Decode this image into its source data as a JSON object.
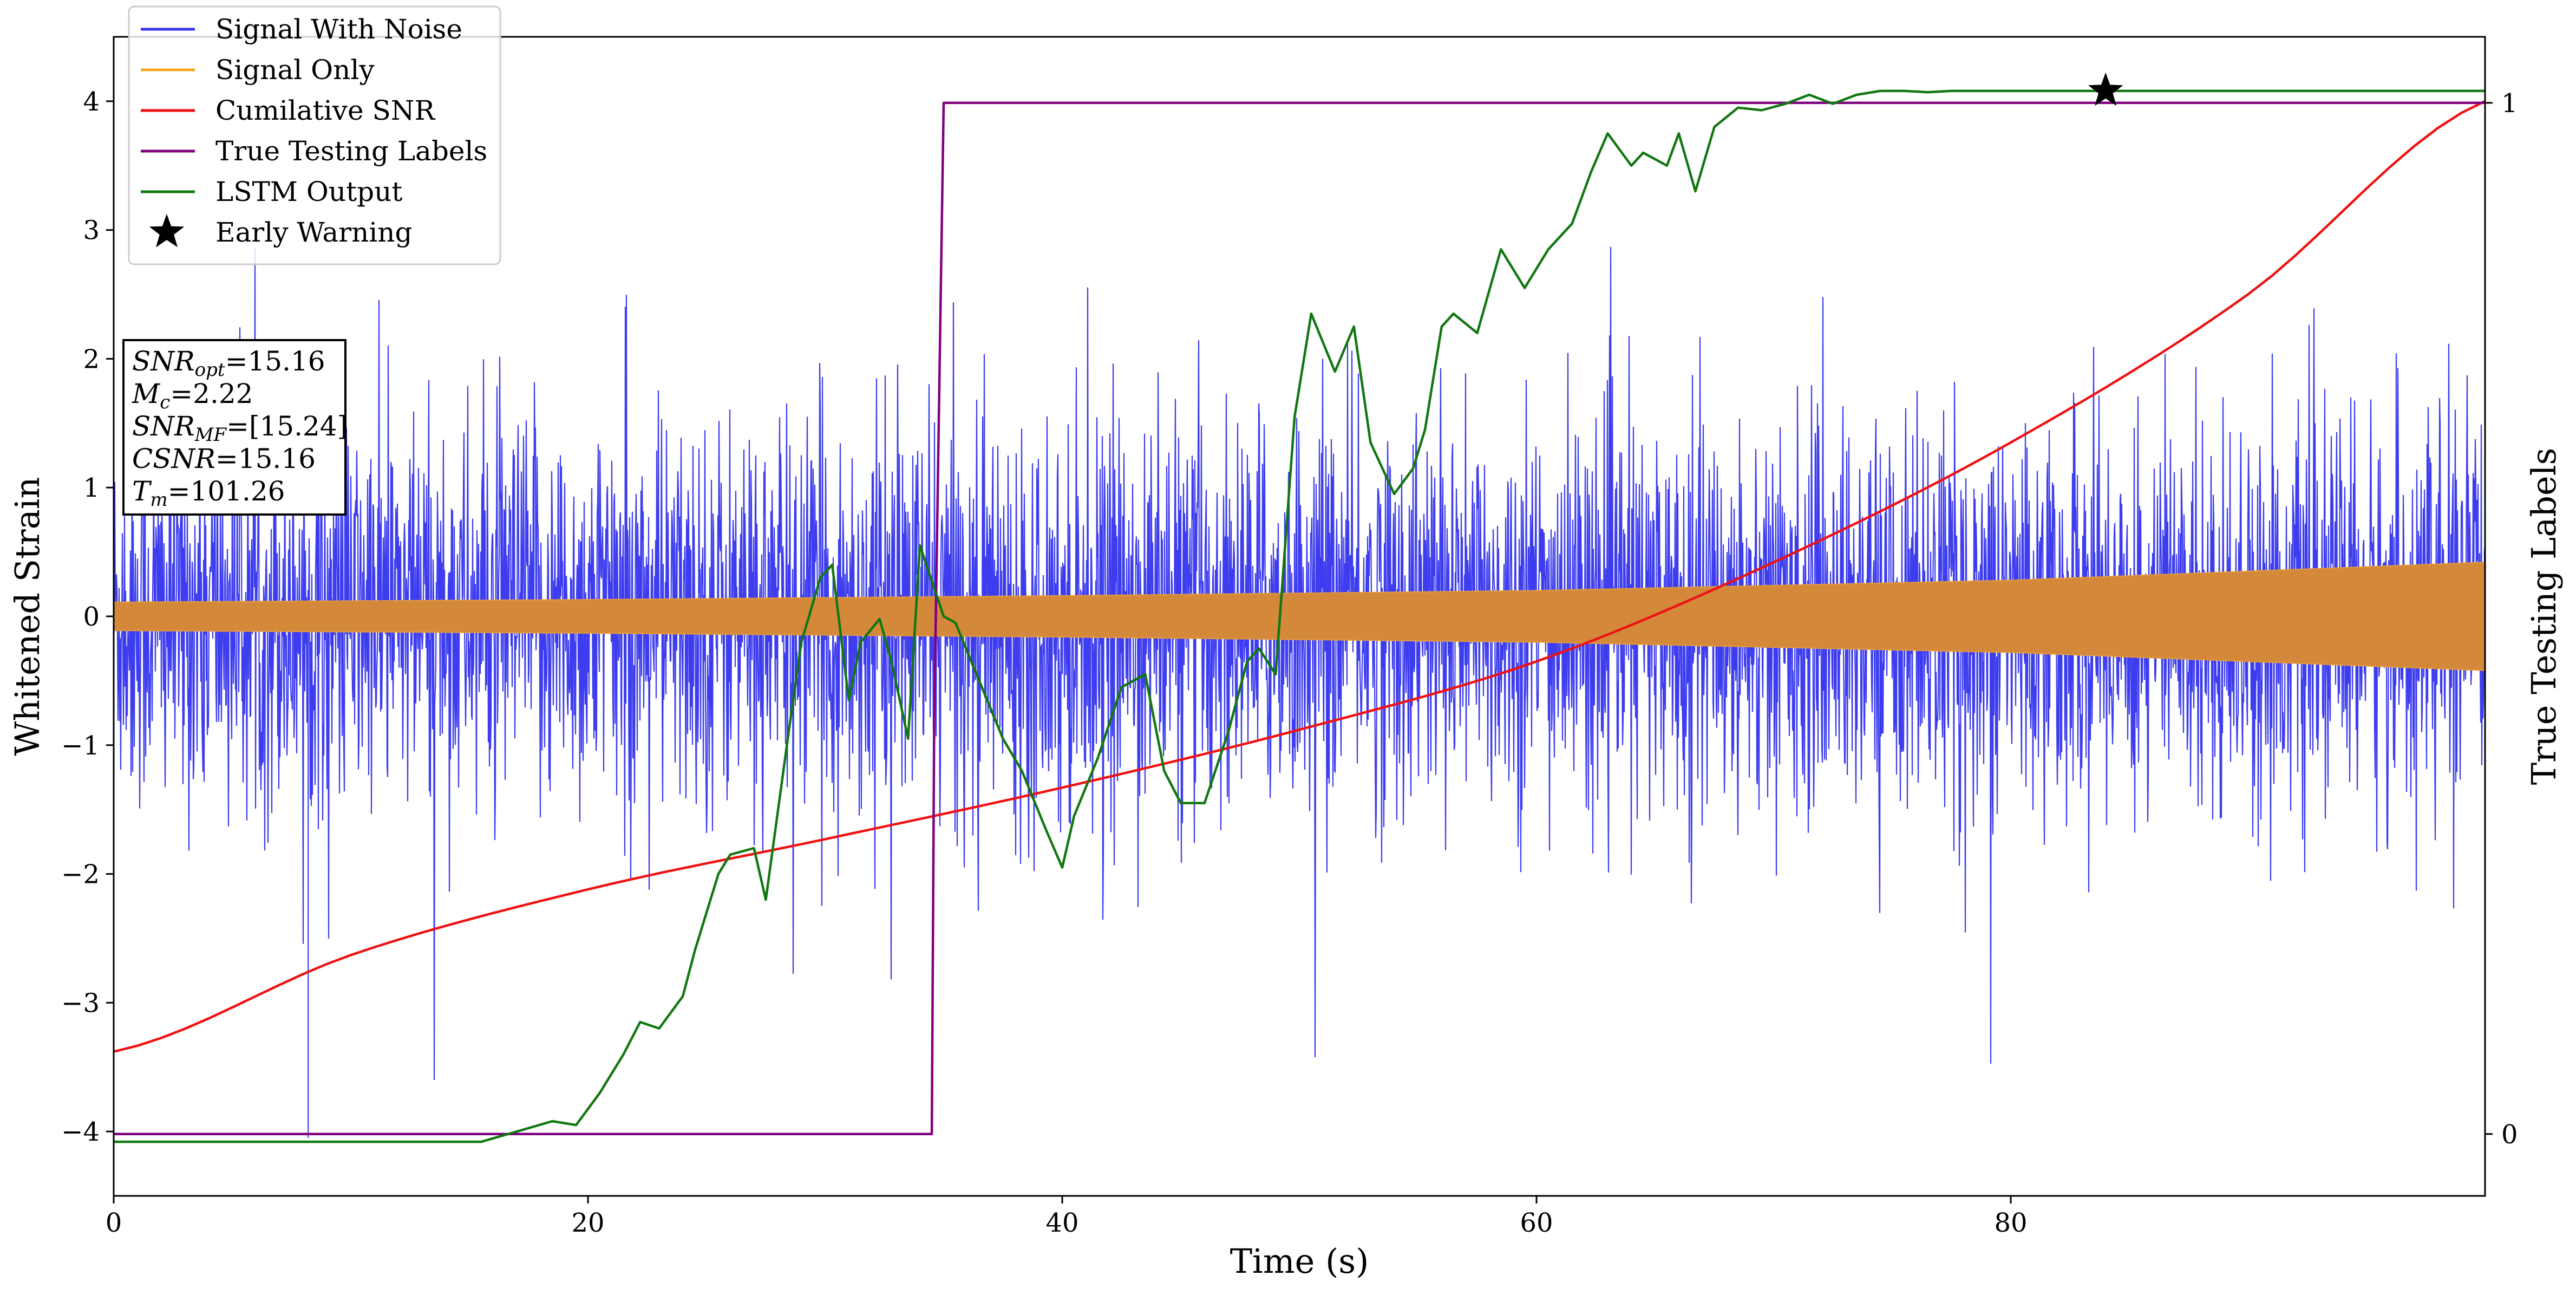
{
  "chart_data": {
    "type": "line",
    "title": "",
    "xlabel": "Time (s)",
    "ylabel": "Whitened Strain",
    "ylabel_right": "True Testing Labels",
    "xlim": [
      0,
      100
    ],
    "ylim": [
      -4.5,
      4.5
    ],
    "ylim_right": [
      -0.06,
      1.064
    ],
    "x_ticks": [
      0,
      20,
      40,
      60,
      80
    ],
    "y_ticks": [
      -4,
      -3,
      -2,
      -1,
      0,
      1,
      2,
      3,
      4
    ],
    "y_tick_labels": [
      "−4",
      "−3",
      "−2",
      "−1",
      "0",
      "1",
      "2",
      "3",
      "4"
    ],
    "y_ticks_right": [
      0,
      1
    ],
    "legend": {
      "placement": "top-left",
      "entries": [
        {
          "label": "Signal With Noise",
          "color": "#3333ee",
          "marker": "line"
        },
        {
          "label": "Signal Only",
          "color": "#f5a623",
          "marker": "line"
        },
        {
          "label": "Cumilative SNR",
          "color": "#ee1111",
          "marker": "line"
        },
        {
          "label": "True Testing Labels",
          "color": "#800080",
          "marker": "line"
        },
        {
          "label": "LSTM Output",
          "color": "#117711",
          "marker": "line"
        },
        {
          "label": "Early Warning",
          "color": "#000000",
          "marker": "star"
        }
      ]
    },
    "info_box": [
      {
        "name": "SNR",
        "sub": "opt",
        "value": "=15.16"
      },
      {
        "name": "M",
        "sub": "c",
        "value": "=2.22"
      },
      {
        "name": "SNR",
        "sub": "MF",
        "value": "=[15.24]"
      },
      {
        "name": "CSNR",
        "sub": "",
        "value": "=15.16"
      },
      {
        "name": "T",
        "sub": "m",
        "value": "=101.26"
      }
    ],
    "series": [
      {
        "name": "Signal With Noise",
        "color": "#3333ee",
        "axis": "left",
        "kind": "noise-band",
        "approx_std": 0.75,
        "approx_range": [
          -3.6,
          3.5
        ],
        "approx_extreme_spike": -4.05
      },
      {
        "name": "Signal Only",
        "color": "#d4883a",
        "axis": "left",
        "kind": "envelope",
        "amplitude_x": [
          0,
          20,
          40,
          60,
          80,
          100
        ],
        "amplitude": [
          0.11,
          0.13,
          0.16,
          0.2,
          0.28,
          0.42
        ]
      },
      {
        "name": "Cumilative SNR",
        "color": "#ee1111",
        "axis": "left",
        "x": [
          0,
          10,
          20,
          30,
          40,
          50,
          60,
          70,
          80,
          90,
          100
        ],
        "y": [
          -3.38,
          -2.63,
          -2.12,
          -1.73,
          -1.33,
          -0.88,
          -0.35,
          0.42,
          1.35,
          2.5,
          4.0
        ]
      },
      {
        "name": "True Testing Labels",
        "color": "#800080",
        "axis": "right",
        "x": [
          0,
          34.5,
          34.6,
          35,
          100
        ],
        "y": [
          0,
          0,
          0.4,
          1,
          1
        ]
      },
      {
        "name": "LSTM Output",
        "color": "#117711",
        "axis": "left",
        "x": [
          0,
          15.5,
          17,
          18.5,
          19.5,
          20.5,
          21.5,
          22.2,
          23,
          24,
          24.5,
          25.5,
          26,
          27,
          27.5,
          28.5,
          29,
          29.8,
          30.3,
          31,
          31.5,
          32.3,
          32.8,
          33.5,
          34,
          35,
          35.5,
          37.5,
          38.3,
          39.3,
          40,
          40.5,
          41.5,
          42.5,
          43.5,
          44.3,
          45,
          46,
          47,
          47.8,
          48.3,
          49,
          49.8,
          50.5,
          51.5,
          52.3,
          53,
          54,
          54.8,
          55.3,
          56,
          56.5,
          57.5,
          58.5,
          59.5,
          60.5,
          61.5,
          62.3,
          63,
          64,
          64.5,
          65.5,
          66,
          66.7,
          67.5,
          68.5,
          69.5,
          70.5,
          71.5,
          72.5,
          73.5,
          74.5,
          75.5,
          76.5,
          77.5,
          78.5,
          79.5,
          80.5,
          100
        ],
        "y": [
          -4.08,
          -4.08,
          -4.0,
          -3.92,
          -3.95,
          -3.7,
          -3.4,
          -3.15,
          -3.2,
          -2.95,
          -2.6,
          -2.0,
          -1.85,
          -1.8,
          -2.2,
          -0.85,
          -0.2,
          0.3,
          0.4,
          -0.65,
          -0.2,
          -0.02,
          -0.35,
          -0.95,
          0.55,
          0.0,
          -0.05,
          -0.95,
          -1.2,
          -1.65,
          -1.95,
          -1.55,
          -1.1,
          -0.55,
          -0.45,
          -1.2,
          -1.45,
          -1.45,
          -0.9,
          -0.35,
          -0.25,
          -0.45,
          1.55,
          2.35,
          1.9,
          2.25,
          1.35,
          0.95,
          1.15,
          1.45,
          2.25,
          2.35,
          2.2,
          2.85,
          2.55,
          2.85,
          3.05,
          3.45,
          3.75,
          3.5,
          3.6,
          3.5,
          3.75,
          3.3,
          3.8,
          3.95,
          3.93,
          3.98,
          4.05,
          3.98,
          4.05,
          4.08,
          4.08,
          4.07,
          4.08,
          4.08,
          4.08,
          4.08,
          4.08
        ]
      },
      {
        "name": "Early Warning",
        "color": "#000000",
        "axis": "left",
        "kind": "marker",
        "x": [
          84
        ],
        "y": [
          4.08
        ]
      }
    ]
  }
}
